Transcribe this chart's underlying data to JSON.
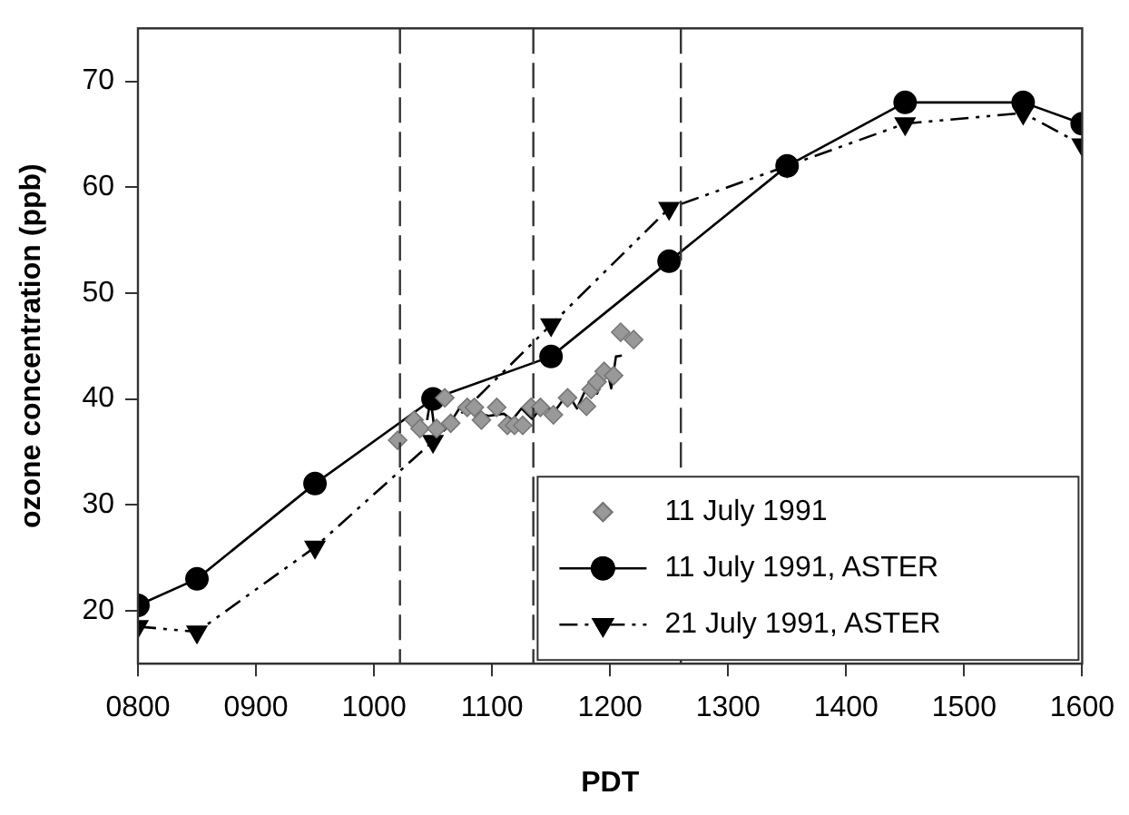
{
  "chart_data": {
    "type": "line",
    "xlabel": "PDT",
    "ylabel": "ozone concentration (ppb)",
    "xlim": [
      800,
      1600
    ],
    "xticks": [
      {
        "value": 800,
        "label": "0800"
      },
      {
        "value": 900,
        "label": "0900"
      },
      1000,
      1100,
      1200,
      1300,
      1400,
      1500,
      1600
    ],
    "ylim": [
      15,
      75
    ],
    "yticks": [
      20,
      30,
      40,
      50,
      60,
      70
    ],
    "grid": false,
    "legend": "bottom right",
    "ref_lines": [
      {
        "axis": "x",
        "value": 1022,
        "line_style": "dashed",
        "color": "#333333"
      },
      {
        "axis": "x",
        "value": 1135,
        "line_style": "dashed",
        "color": "#333333"
      },
      {
        "axis": "x",
        "value": 1260,
        "line_style": "dashed",
        "color": "#333333"
      }
    ],
    "series": [
      {
        "name": "11 July 1991",
        "type": "scatter",
        "marker": "diamond",
        "color": "#999999",
        "x": [
          1020,
          1034,
          1039,
          1053,
          1060,
          1065,
          1079,
          1085,
          1091,
          1104,
          1113,
          1119,
          1126,
          1133,
          1141,
          1152,
          1164,
          1180,
          1184,
          1189,
          1195,
          1203,
          1209,
          1220
        ],
        "values": [
          36.1,
          38.0,
          37.2,
          37.2,
          40.1,
          37.7,
          39.2,
          39.2,
          38.0,
          39.2,
          37.5,
          37.5,
          37.5,
          39.2,
          39.2,
          38.5,
          40.1,
          39.3,
          40.9,
          41.6,
          42.6,
          42.2,
          46.3,
          45.6
        ]
      },
      {
        "marker": "none",
        "line_style": "solid",
        "color": "#000000",
        "x": [
          1045,
          1048,
          1052,
          1066,
          1074,
          1084,
          1097,
          1110,
          1117,
          1125,
          1134,
          1143,
          1153,
          1164,
          1172,
          1182,
          1189,
          1197,
          1201,
          1205,
          1210
        ],
        "values": [
          38.0,
          40.0,
          36.4,
          38.0,
          39.4,
          38.8,
          38.4,
          38.6,
          38.0,
          39.1,
          38.1,
          39.4,
          38.8,
          40.5,
          39.1,
          41.5,
          40.5,
          42.9,
          41.0,
          44.0,
          44.1
        ]
      },
      {
        "name": "11 July 1991, ASTER",
        "marker": "circle",
        "line_style": "solid",
        "color": "#000000",
        "x": [
          800,
          850,
          950,
          1050,
          1150,
          1250,
          1350,
          1450,
          1550,
          1600
        ],
        "values": [
          20.5,
          23,
          32,
          40,
          44,
          53,
          62,
          68,
          68,
          66
        ]
      },
      {
        "name": "21 July 1991, ASTER",
        "marker": "triangle",
        "line_style": "dashed",
        "color": "#000000",
        "x": [
          800,
          850,
          950,
          1050,
          1150,
          1250,
          1350,
          1450,
          1550,
          1600
        ],
        "values": [
          18.5,
          18,
          26,
          36,
          47,
          58,
          62,
          66,
          67,
          64
        ]
      }
    ]
  }
}
